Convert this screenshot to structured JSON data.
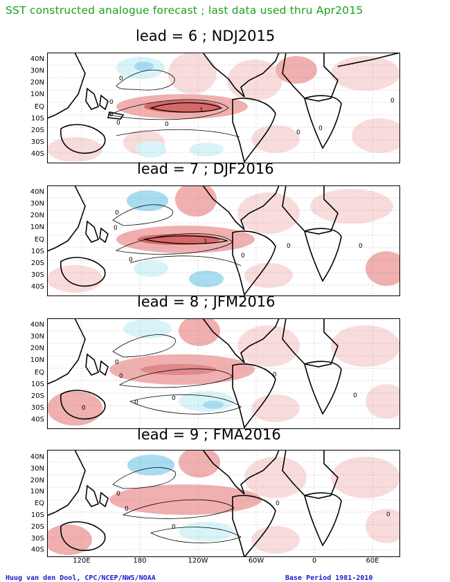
{
  "title": "SST constructed analogue forecast ; last data used thru Apr2015",
  "panels": [
    {
      "label": "lead = 6 ; NDJ2015",
      "contours": [
        "0",
        "0",
        "0",
        "0",
        "0",
        "0",
        "0",
        "1",
        "0"
      ]
    },
    {
      "label": "lead = 7 ; DJF2016",
      "contours": [
        "0",
        "0",
        "0",
        "0",
        "1",
        "0",
        "0"
      ]
    },
    {
      "label": "lead = 8 ; JFM2016",
      "contours": [
        "0",
        "0",
        "0",
        "0",
        "0",
        "0",
        "0"
      ]
    },
    {
      "label": "lead = 9 ; FMA2016",
      "contours": [
        "0",
        "0",
        "0",
        "0",
        "0"
      ]
    }
  ],
  "lat_labels": [
    "40N",
    "30N",
    "20N",
    "10N",
    "EQ",
    "10S",
    "20S",
    "30S",
    "40S"
  ],
  "lon_labels": [
    "120E",
    "180",
    "120W",
    "60W",
    "0",
    "60E"
  ],
  "footer_left": "Huug van den Dool, CPC/NCEP/NWS/NOAA",
  "footer_right": "Base Period 1981-2010",
  "colors": {
    "title": "#1aa01a",
    "warm_light": "#f8dcdc",
    "warm": "#f0b0b0",
    "warm_strong": "#d86868",
    "cool_light": "#d8f4f8",
    "cool": "#a8dcf0",
    "footer": "#1a1ad0"
  }
}
